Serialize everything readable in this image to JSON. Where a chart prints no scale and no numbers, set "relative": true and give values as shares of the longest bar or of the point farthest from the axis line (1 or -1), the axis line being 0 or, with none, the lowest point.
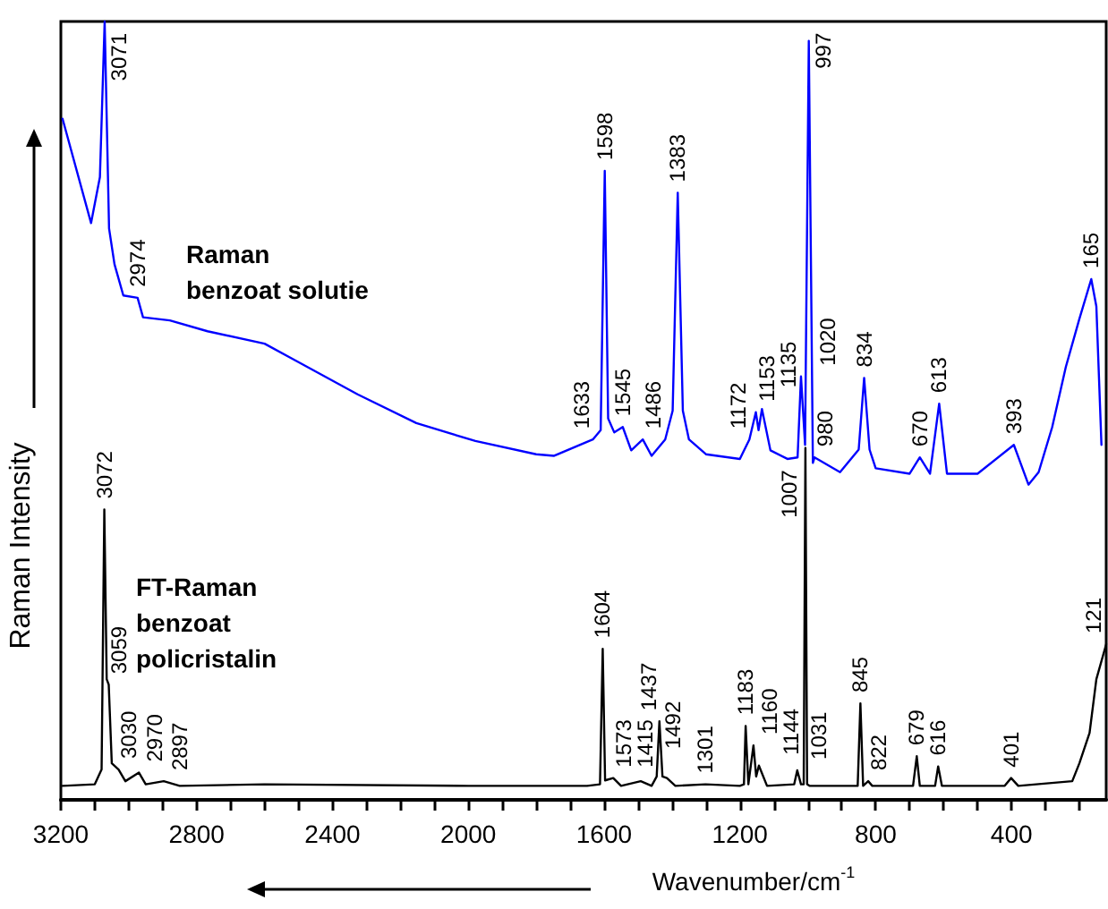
{
  "chart_data": {
    "type": "line",
    "relative": true,
    "xlabel": "Wavenumber/cm$^{-1}$",
    "ylabel": "Raman Intensity",
    "xlim": [
      3200,
      121
    ],
    "xticks": [
      3200,
      {
        "value": 3100,
        "label": null
      },
      {
        "value": 3000,
        "label": null
      },
      {
        "value": 2900,
        "label": null
      },
      2800,
      {
        "value": 2700,
        "label": null
      },
      {
        "value": 2600,
        "label": null
      },
      {
        "value": 2500,
        "label": null
      },
      2400,
      {
        "value": 2300,
        "label": null
      },
      {
        "value": 2200,
        "label": null
      },
      {
        "value": 2100,
        "label": null
      },
      2000,
      {
        "value": 1900,
        "label": null
      },
      {
        "value": 1800,
        "label": null
      },
      {
        "value": 1700,
        "label": null
      },
      1600,
      {
        "value": 1500,
        "label": null
      },
      {
        "value": 1400,
        "label": null
      },
      {
        "value": 1300,
        "label": null
      },
      1200,
      {
        "value": 1100,
        "label": null
      },
      {
        "value": 1000,
        "label": null
      },
      {
        "value": 900,
        "label": null
      },
      800,
      {
        "value": 700,
        "label": null
      },
      {
        "value": 600,
        "label": null
      },
      {
        "value": 500,
        "label": null
      },
      400,
      {
        "value": 300,
        "label": null
      },
      {
        "value": 200,
        "label": null
      }
    ],
    "series": [
      {
        "name": "Raman\nbenzoat solutie",
        "color": "#0000ff",
        "x": [
          3195,
          3111,
          3085,
          3071,
          3058,
          3042,
          3016,
          2974,
          2958,
          2879,
          2768,
          2600,
          2511,
          2326,
          2153,
          1979,
          1800,
          1747,
          1633,
          1610,
          1598,
          1588,
          1570,
          1545,
          1520,
          1486,
          1460,
          1420,
          1398,
          1383,
          1368,
          1350,
          1300,
          1200,
          1172,
          1153,
          1145,
          1135,
          1110,
          1060,
          1030,
          1020,
          1008,
          997,
          985,
          980,
          905,
          850,
          834,
          818,
          800,
          700,
          670,
          640,
          613,
          590,
          500,
          393,
          350,
          320,
          280,
          240,
          200,
          165,
          150,
          135
        ],
        "values": [
          0.875,
          0.741,
          0.8,
          1.0,
          0.734,
          0.688,
          0.648,
          0.645,
          0.62,
          0.616,
          0.602,
          0.586,
          0.565,
          0.521,
          0.484,
          0.461,
          0.444,
          0.442,
          0.463,
          0.475,
          0.808,
          0.49,
          0.472,
          0.479,
          0.449,
          0.463,
          0.442,
          0.463,
          0.5,
          0.78,
          0.5,
          0.463,
          0.444,
          0.438,
          0.463,
          0.498,
          0.475,
          0.502,
          0.449,
          0.438,
          0.44,
          0.544,
          0.456,
          0.975,
          0.433,
          0.44,
          0.421,
          0.45,
          0.542,
          0.45,
          0.426,
          0.419,
          0.44,
          0.419,
          0.509,
          0.419,
          0.419,
          0.456,
          0.405,
          0.421,
          0.479,
          0.556,
          0.618,
          0.669,
          0.634,
          0.456
        ]
      },
      {
        "name": "FT-Raman\nbenzoat\npolicristalin",
        "color": "#000000",
        "x": [
          3195,
          3100,
          3080,
          3072,
          3065,
          3059,
          3050,
          3030,
          3010,
          2970,
          2950,
          2897,
          2850,
          2600,
          2000,
          1650,
          1612,
          1604,
          1597,
          1573,
          1550,
          1492,
          1460,
          1445,
          1437,
          1428,
          1415,
          1390,
          1301,
          1200,
          1188,
          1183,
          1175,
          1160,
          1152,
          1144,
          1120,
          1040,
          1031,
          1020,
          1012,
          1007,
          1002,
          995,
          860,
          853,
          845,
          837,
          822,
          810,
          690,
          679,
          670,
          625,
          616,
          605,
          420,
          401,
          380,
          221,
          200,
          170,
          150,
          121
        ],
        "values": [
          0.018,
          0.02,
          0.039,
          0.373,
          0.155,
          0.148,
          0.047,
          0.039,
          0.024,
          0.035,
          0.02,
          0.024,
          0.018,
          0.02,
          0.018,
          0.018,
          0.02,
          0.194,
          0.025,
          0.028,
          0.018,
          0.024,
          0.018,
          0.03,
          0.101,
          0.03,
          0.028,
          0.018,
          0.02,
          0.018,
          0.02,
          0.095,
          0.02,
          0.07,
          0.03,
          0.044,
          0.018,
          0.02,
          0.038,
          0.02,
          0.02,
          0.452,
          0.02,
          0.018,
          0.018,
          0.018,
          0.124,
          0.018,
          0.024,
          0.018,
          0.018,
          0.056,
          0.018,
          0.018,
          0.043,
          0.018,
          0.018,
          0.028,
          0.018,
          0.024,
          0.047,
          0.086,
          0.155,
          0.2
        ]
      }
    ],
    "annotations": [
      {
        "text": "3071",
        "x": 3071,
        "y": 1.0
      },
      {
        "text": "2974",
        "x": 2974,
        "y": 0.645
      },
      {
        "text": "1633",
        "x": 1633,
        "y": 0.463
      },
      {
        "text": "1598",
        "x": 1598,
        "y": 0.808
      },
      {
        "text": "1545",
        "x": 1545,
        "y": 0.479
      },
      {
        "text": "1486",
        "x": 1486,
        "y": 0.463
      },
      {
        "text": "1383",
        "x": 1383,
        "y": 0.78
      },
      {
        "text": "1172",
        "x": 1172,
        "y": 0.463
      },
      {
        "text": "1153",
        "x": 1153,
        "y": 0.498
      },
      {
        "text": "1135",
        "x": 1135,
        "y": 0.502
      },
      {
        "text": "1020",
        "x": 1020,
        "y": 0.544
      },
      {
        "text": "997",
        "x": 997,
        "y": 0.975
      },
      {
        "text": "980",
        "x": 980,
        "y": 0.44
      },
      {
        "text": "834",
        "x": 834,
        "y": 0.542
      },
      {
        "text": "670",
        "x": 670,
        "y": 0.44
      },
      {
        "text": "613",
        "x": 613,
        "y": 0.509
      },
      {
        "text": "393",
        "x": 393,
        "y": 0.456
      },
      {
        "text": "165",
        "x": 165,
        "y": 0.669
      },
      {
        "text": "3072",
        "x": 3072,
        "y": 0.373
      },
      {
        "text": "3059",
        "x": 3059,
        "y": 0.148
      },
      {
        "text": "3030",
        "x": 3030,
        "y": 0.039
      },
      {
        "text": "2970",
        "x": 2970,
        "y": 0.035
      },
      {
        "text": "2897",
        "x": 2897,
        "y": 0.024
      },
      {
        "text": "1604",
        "x": 1604,
        "y": 0.194
      },
      {
        "text": "1573",
        "x": 1573,
        "y": 0.028
      },
      {
        "text": "1492",
        "x": 1492,
        "y": 0.024
      },
      {
        "text": "1437",
        "x": 1437,
        "y": 0.101
      },
      {
        "text": "1415",
        "x": 1415,
        "y": 0.028
      },
      {
        "text": "1301",
        "x": 1301,
        "y": 0.02
      },
      {
        "text": "1183",
        "x": 1183,
        "y": 0.095
      },
      {
        "text": "1160",
        "x": 1160,
        "y": 0.07
      },
      {
        "text": "1144",
        "x": 1144,
        "y": 0.044
      },
      {
        "text": "1031",
        "x": 1031,
        "y": 0.038
      },
      {
        "text": "1007",
        "x": 1007,
        "y": 0.452
      },
      {
        "text": "845",
        "x": 845,
        "y": 0.124
      },
      {
        "text": "822",
        "x": 822,
        "y": 0.024
      },
      {
        "text": "679",
        "x": 679,
        "y": 0.056
      },
      {
        "text": "616",
        "x": 616,
        "y": 0.043
      },
      {
        "text": "401",
        "x": 401,
        "y": 0.028
      },
      {
        "text": "121",
        "x": 121,
        "y": 0.2
      }
    ]
  }
}
